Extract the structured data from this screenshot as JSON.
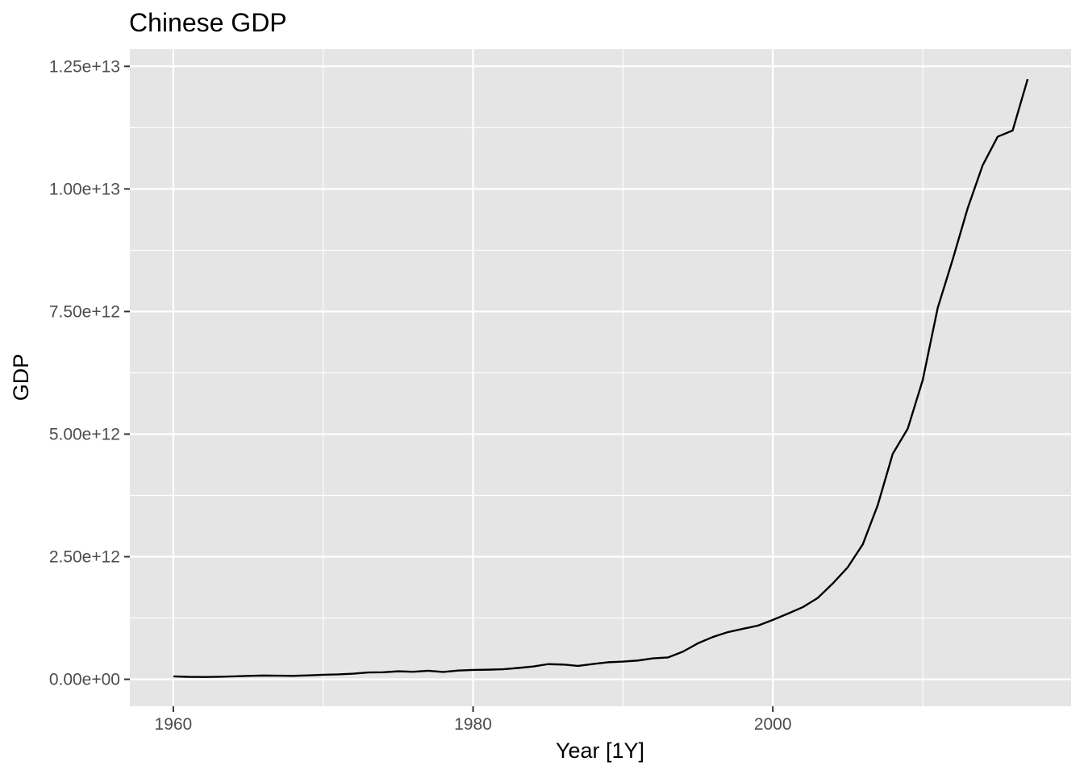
{
  "chart_data": {
    "type": "line",
    "title": "Chinese GDP",
    "xlabel": "Year [1Y]",
    "ylabel": "GDP",
    "xlim": [
      1957.1,
      2019.9
    ],
    "ylim": [
      -550000000000.0,
      12850000000000.0
    ],
    "x_ticks": [
      1960,
      1980,
      2000
    ],
    "x_tick_labels": [
      "1960",
      "1980",
      "2000"
    ],
    "y_ticks": [
      0,
      2500000000000.0,
      5000000000000.0,
      7500000000000.0,
      10000000000000.0,
      12500000000000.0
    ],
    "y_tick_labels": [
      "0.00e+00",
      "2.50e+12",
      "5.00e+12",
      "7.50e+12",
      "1.00e+13",
      "1.25e+13"
    ],
    "grid": true,
    "legend": "none",
    "colors": {
      "panel": "#e5e5e5",
      "grid": "#ffffff",
      "line": "#000000",
      "tick": "#333333"
    },
    "series": [
      {
        "x": [
          1960,
          1961,
          1962,
          1963,
          1964,
          1965,
          1966,
          1967,
          1968,
          1969,
          1970,
          1971,
          1972,
          1973,
          1974,
          1975,
          1976,
          1977,
          1978,
          1979,
          1980,
          1981,
          1982,
          1983,
          1984,
          1985,
          1986,
          1987,
          1988,
          1989,
          1990,
          1991,
          1992,
          1993,
          1994,
          1995,
          1996,
          1997,
          1998,
          1999,
          2000,
          2001,
          2002,
          2003,
          2004,
          2005,
          2006,
          2007,
          2008,
          2009,
          2010,
          2011,
          2012,
          2013,
          2014,
          2015,
          2016,
          2017
        ],
        "values": [
          59700000000.0,
          50000000000.0,
          47200000000.0,
          50700000000.0,
          59700000000.0,
          70400000000.0,
          76700000000.0,
          72900000000.0,
          70700000000.0,
          79700000000.0,
          92600000000.0,
          99800000000.0,
          114000000000.0,
          139000000000.0,
          144000000000.0,
          163000000000.0,
          154000000000.0,
          175000000000.0,
          150000000000.0,
          179000000000.0,
          191000000000.0,
          196000000000.0,
          205000000000.0,
          231000000000.0,
          260000000000.0,
          309000000000.0,
          301000000000.0,
          273000000000.0,
          312000000000.0,
          348000000000.0,
          361000000000.0,
          383000000000.0,
          427000000000.0,
          445000000000.0,
          564000000000.0,
          734000000000.0,
          863000000000.0,
          962000000000.0,
          1029000000000.0,
          1094000000000.0,
          1211000000000.0,
          1339000000000.0,
          1471000000000.0,
          1660000000000.0,
          1955000000000.0,
          2286000000000.0,
          2752000000000.0,
          3552000000000.0,
          4598000000000.0,
          5110000000000.0,
          6101000000000.0,
          7573000000000.0,
          8561000000000.0,
          9607000000000.0,
          10482000000000.0,
          11065000000000.0,
          11191000000000.0,
          12238000000000.0
        ]
      }
    ]
  }
}
